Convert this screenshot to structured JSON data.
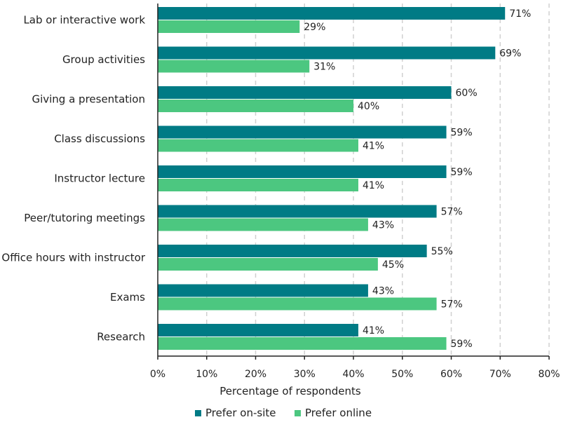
{
  "chart_data": {
    "type": "bar",
    "orientation": "horizontal",
    "categories": [
      "Lab or interactive work",
      "Group activities",
      "Giving a presentation",
      "Class discussions",
      "Instructor lecture",
      "Peer/tutoring meetings",
      "Office hours with instructor",
      "Exams",
      "Research"
    ],
    "series": [
      {
        "name": "Prefer on-site",
        "color": "#007b85",
        "values": [
          71,
          69,
          60,
          59,
          59,
          57,
          55,
          43,
          41
        ],
        "labels": [
          "71%",
          "69%",
          "60%",
          "59%",
          "59%",
          "57%",
          "55%",
          "43%",
          "41%"
        ]
      },
      {
        "name": "Prefer online",
        "color": "#4cc780",
        "values": [
          29,
          31,
          40,
          41,
          41,
          43,
          45,
          57,
          59
        ],
        "labels": [
          "29%",
          "31%",
          "40%",
          "41%",
          "41%",
          "43%",
          "45%",
          "57%",
          "59%"
        ]
      }
    ],
    "xlabel": "Percentage of respondents",
    "ylabel": "",
    "title": "",
    "xlim": [
      0,
      80
    ],
    "xticks": [
      0,
      10,
      20,
      30,
      40,
      50,
      60,
      70,
      80
    ],
    "xtick_labels": [
      "0%",
      "10%",
      "20%",
      "30%",
      "40%",
      "50%",
      "60%",
      "70%",
      "80%"
    ],
    "grid": "vertical dashed",
    "legend_position": "bottom-center",
    "gridline_color": "#d0d0d0",
    "axis_color": "#222222"
  }
}
